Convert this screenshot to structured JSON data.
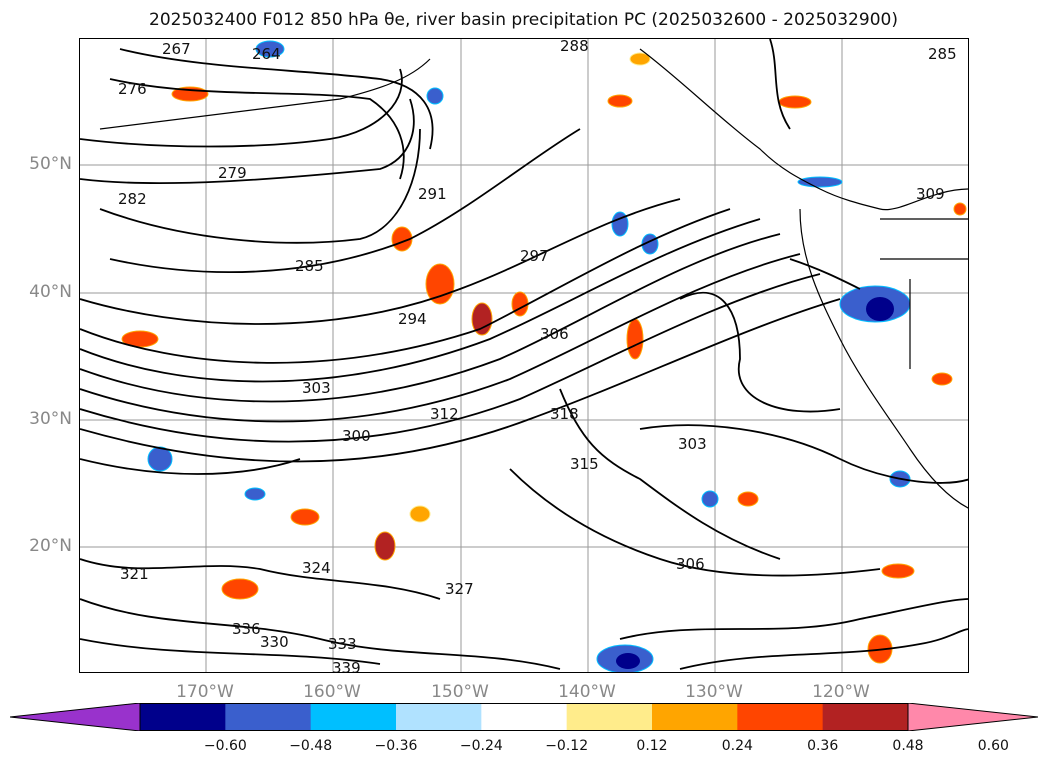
{
  "title": "2025032400 F012 850 hPa θe, river basin precipitation PC (2025032600 - 2025032900)",
  "lat_labels": [
    "50°N",
    "40°N",
    "30°N",
    "20°N"
  ],
  "lon_labels": [
    "170°W",
    "160°W",
    "150°W",
    "140°W",
    "130°W",
    "120°W"
  ],
  "contour_labels": [
    "267",
    "264",
    "276",
    "279",
    "282",
    "285",
    "291",
    "297",
    "294",
    "300",
    "303",
    "306",
    "309",
    "312",
    "315",
    "318",
    "321",
    "324",
    "327",
    "330",
    "333",
    "336",
    "339",
    "288",
    "285",
    "303",
    "306"
  ],
  "colorbar": {
    "ticks": [
      "−0.60",
      "−0.48",
      "−0.36",
      "−0.24",
      "−0.12",
      "0.12",
      "0.24",
      "0.36",
      "0.48",
      "0.60"
    ],
    "colors": [
      "#9932cc",
      "#00008b",
      "#3a5fcd",
      "#00bfff",
      "#b0e2ff",
      "#ffffff",
      "#ffec8b",
      "#ffa500",
      "#ff4500",
      "#b22222",
      "#ff88aa"
    ]
  }
}
